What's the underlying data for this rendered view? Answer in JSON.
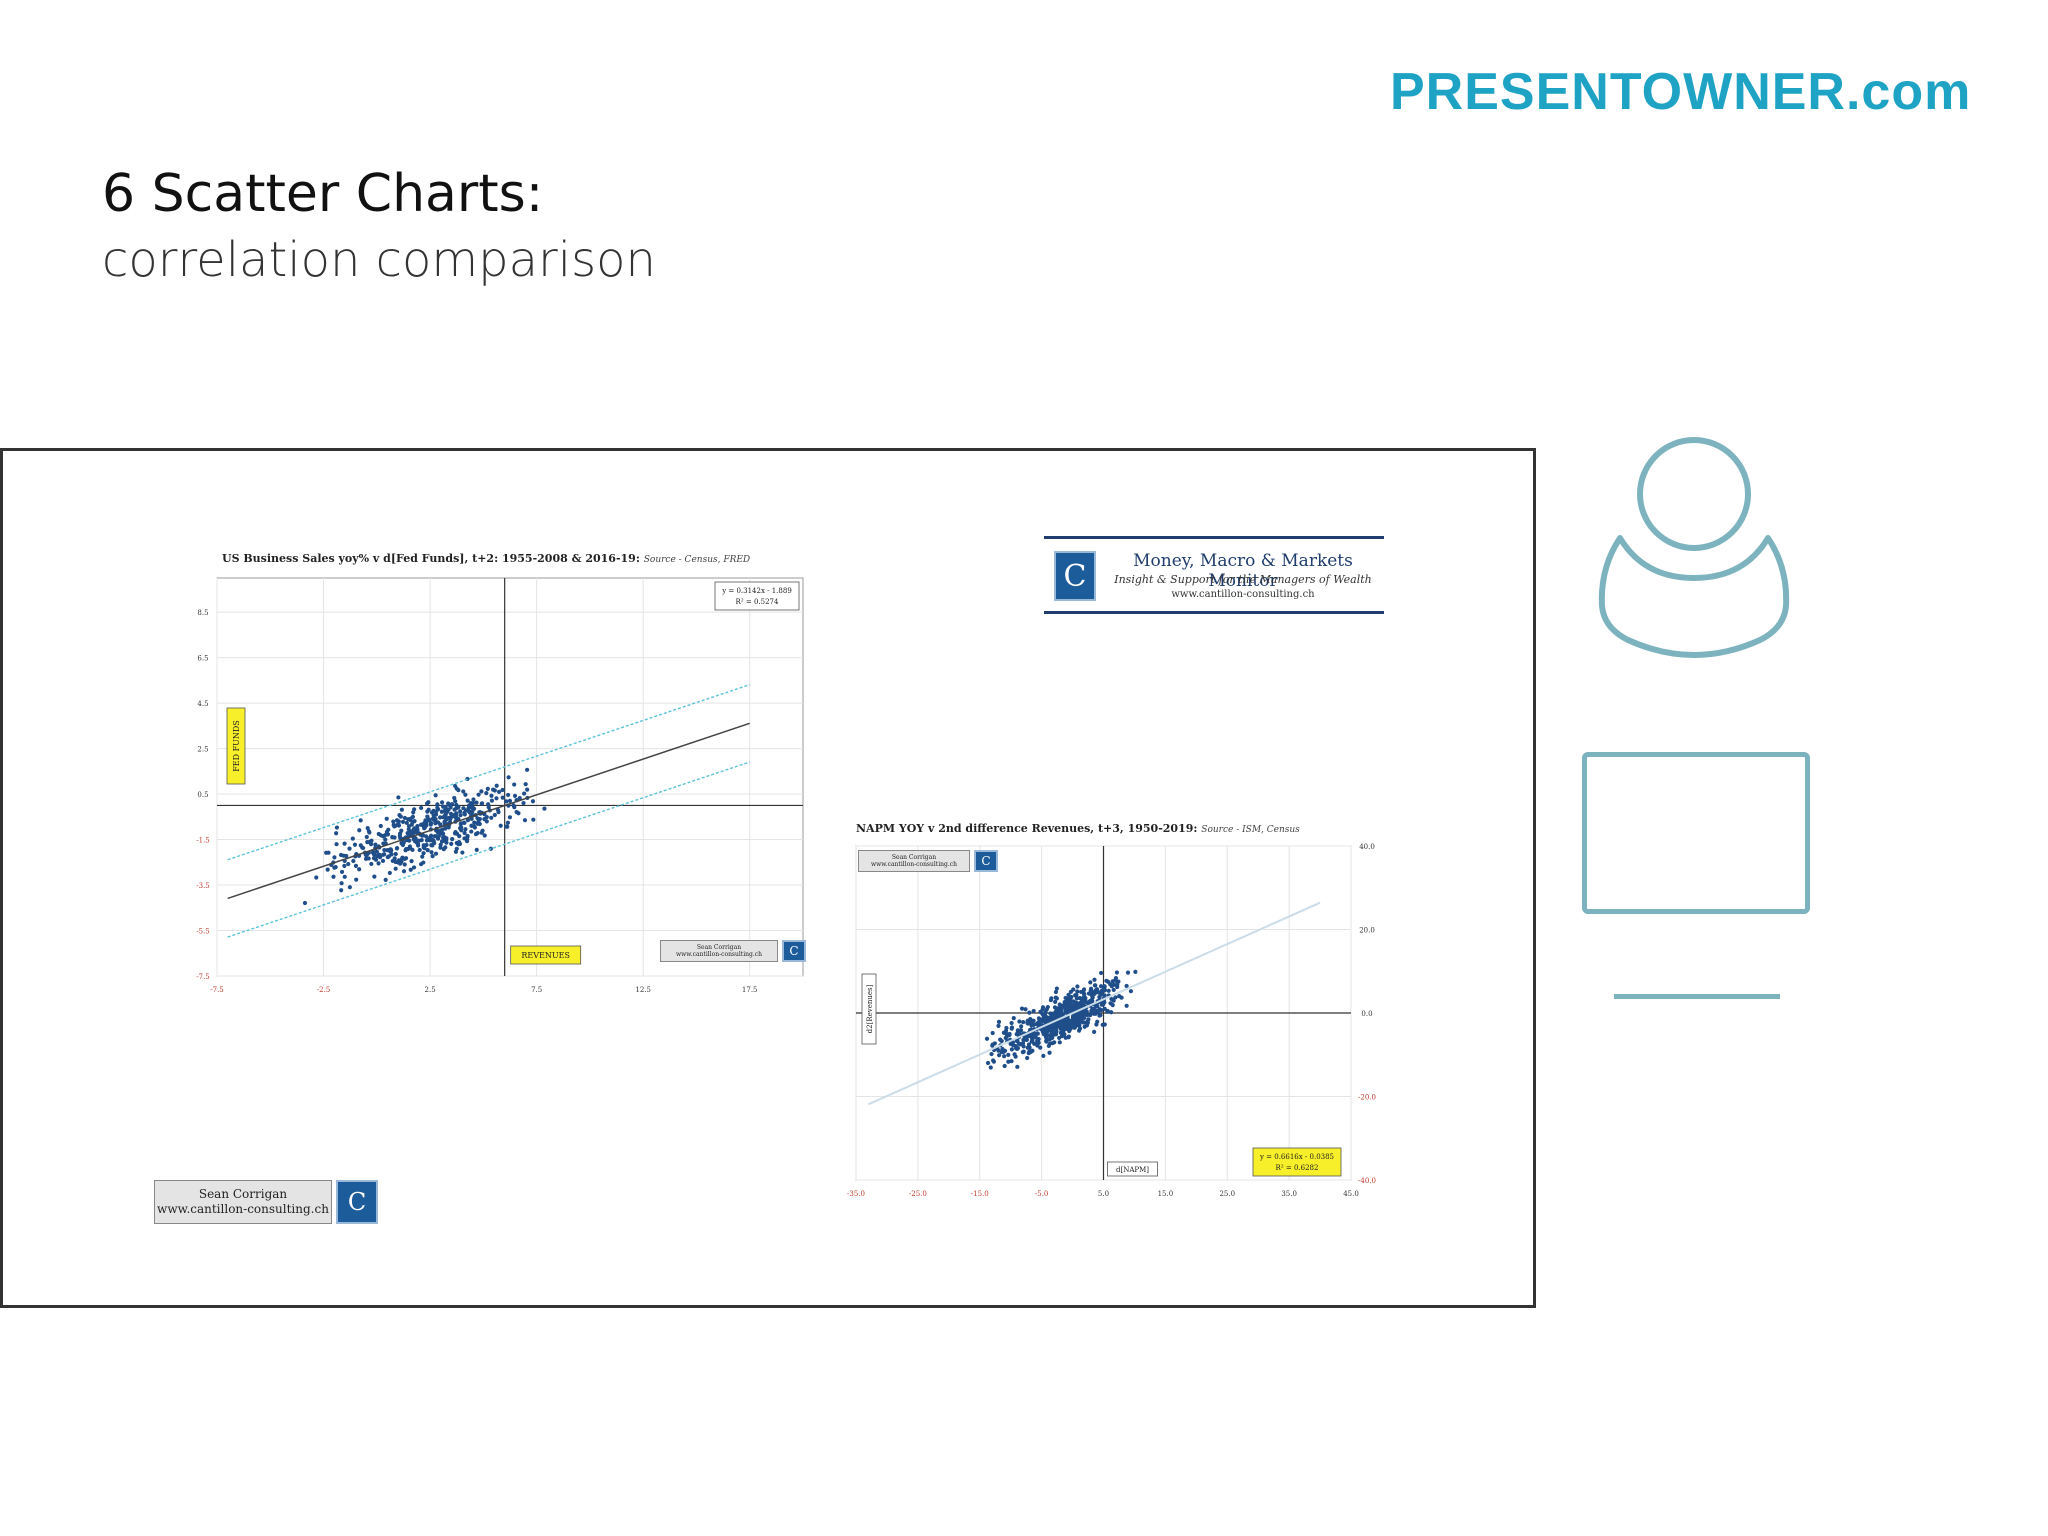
{
  "brand": "PRESENTOWNER.com",
  "slide": {
    "title": "6 Scatter Charts:",
    "subtitle": "correlation comparison"
  },
  "monitor_box": {
    "title": "Money, Macro & Markets Monitor",
    "tagline": "Insight & Support for the Managers of Wealth",
    "url": "www.cantillon-consulting.ch"
  },
  "signature": {
    "name": "Sean Corrigan",
    "url": "www.cantillon-consulting.ch"
  },
  "chart_data": [
    {
      "type": "scatter",
      "title": "US Business Sales yoy% v d[Fed Funds], t+2: 1955-2008 & 2016-19:",
      "source": "Source - Census, FRED",
      "xlabel": "REVENUES",
      "ylabel": "FED FUNDS",
      "xlim": [
        -7.5,
        20.0
      ],
      "ylim": [
        -7.5,
        10.0
      ],
      "x_ticks": [
        "-7.5",
        "-2.5",
        "2.5",
        "7.5",
        "12.5",
        "17.5"
      ],
      "y_ticks": [
        "8.5",
        "6.5",
        "4.5",
        "2.5",
        "0.5",
        "-1.5",
        "-3.5",
        "-5.5",
        "-7.5"
      ],
      "equation": "y = 0.3142x - 1.889",
      "r_squared": "R² = 0.5274",
      "trend": {
        "slope": 0.3142,
        "intercept": -1.889,
        "band": 1.7
      },
      "x_axis_at": 6.0,
      "y_axis_at": 0.0,
      "n_points": 480,
      "x_spread": [
        -7.0,
        17.5
      ],
      "noise": 1.3,
      "colors": {
        "points": "#1f4e8a",
        "trend": "#444444",
        "band": "#5cc3d8",
        "label_bg": "#f7ef2a"
      }
    },
    {
      "type": "scatter",
      "title": "NAPM YOY v 2nd difference Revenues, t+3, 1950-2019:",
      "source": "Source - ISM, Census",
      "xlabel": "d[NAPM]",
      "ylabel": "d2[Revenues]",
      "xlim": [
        -35.0,
        45.0
      ],
      "ylim": [
        -40.0,
        40.0
      ],
      "x_ticks": [
        "-35.0",
        "-25.0",
        "-15.0",
        "-5.0",
        "5.0",
        "15.0",
        "25.0",
        "35.0",
        "45.0"
      ],
      "y_ticks": [
        "40.0",
        "20.0",
        "0.0",
        "-20.0",
        "-40.0"
      ],
      "equation": "y = 0.6616x - 0.0385",
      "r_squared": "R² = 0.6282",
      "trend": {
        "slope": 0.6616,
        "intercept": -0.0385,
        "band": 0
      },
      "x_axis_at": 5.0,
      "y_axis_at": 0.0,
      "n_points": 620,
      "x_spread": [
        -33.0,
        40.0
      ],
      "noise": 5.0,
      "colors": {
        "points": "#1f4e8a",
        "trend": "#c9dce8",
        "label_bg": "#f7ef2a"
      }
    }
  ]
}
